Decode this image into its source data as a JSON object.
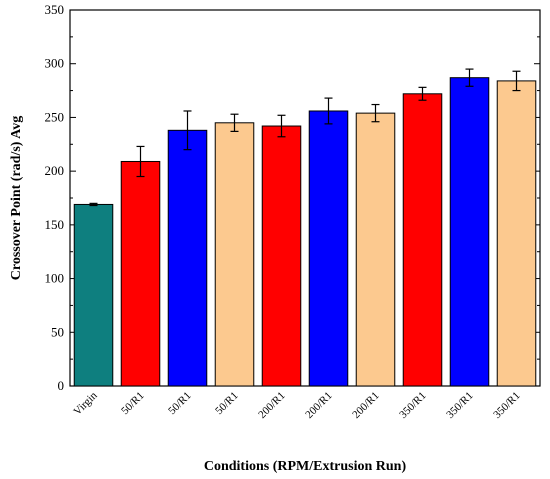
{
  "chart_data": {
    "type": "bar",
    "title": "",
    "xlabel": "Conditions (RPM/Extrusion Run)",
    "ylabel": "Crossover Point (rad/s) Avg",
    "ylim": [
      0,
      350
    ],
    "yticks": [
      0,
      50,
      100,
      150,
      200,
      250,
      300,
      350
    ],
    "grid": false,
    "legend": "none",
    "categories": [
      "Virgin",
      "50/R1",
      "50/R1",
      "50/R1",
      "200/R1",
      "200/R1",
      "200/R1",
      "350/R1",
      "350/R1",
      "350/R1"
    ],
    "values": [
      169,
      209,
      238,
      245,
      242,
      256,
      254,
      272,
      287,
      284
    ],
    "errors": [
      1,
      14,
      18,
      8,
      10,
      12,
      8,
      6,
      8,
      9
    ],
    "colors": [
      "#0e7f7f",
      "#ff0000",
      "#0000ff",
      "#fcc98f",
      "#ff0000",
      "#0000ff",
      "#fcc98f",
      "#ff0000",
      "#0000ff",
      "#fcc98f"
    ]
  }
}
